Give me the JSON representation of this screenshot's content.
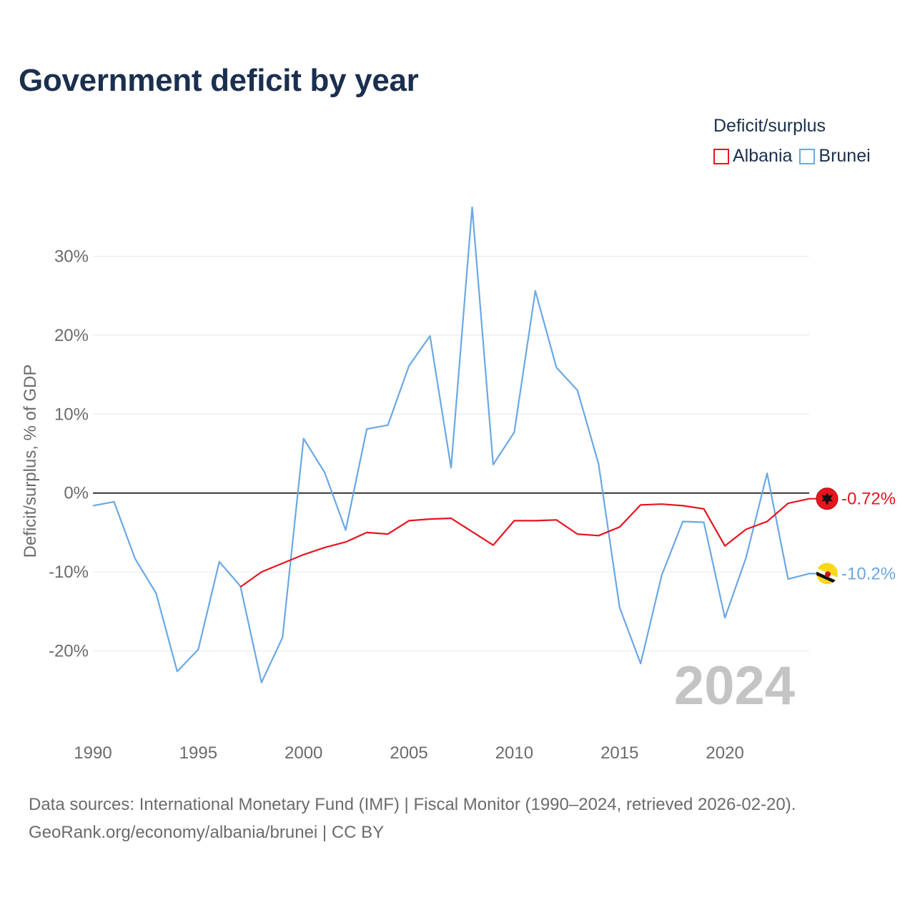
{
  "title": "Government deficit by year",
  "legend": {
    "title": "Deficit/surplus",
    "items": [
      {
        "label": "Albania",
        "color": "#e8141e"
      },
      {
        "label": "Brunei",
        "color": "#6aa8e4"
      }
    ]
  },
  "footer": {
    "line1": "Data sources: International Monetary Fund (IMF) | Fiscal Monitor (1990–2024, retrieved 2026-02-20).",
    "line2": "GeoRank.org/economy/albania/brunei | CC BY"
  },
  "chart_data": {
    "type": "line",
    "title": "Government deficit by year",
    "ylabel": "Deficit/surplus, % of GDP",
    "xlabel": "",
    "xlim": [
      1990,
      2024
    ],
    "ylim": [
      -29,
      38
    ],
    "xticks": [
      1990,
      1995,
      2000,
      2005,
      2010,
      2015,
      2020
    ],
    "yticks": [
      -20,
      -10,
      0,
      10,
      20,
      30
    ],
    "ytick_labels": [
      "-20%",
      "-10%",
      "0%",
      "10%",
      "20%",
      "30%"
    ],
    "year_watermark": "2024",
    "series": [
      {
        "name": "Albania",
        "color": "#e8141e",
        "end_label": "-0.72%",
        "x": [
          1997,
          1998,
          1999,
          2000,
          2001,
          2002,
          2003,
          2004,
          2005,
          2006,
          2007,
          2008,
          2009,
          2010,
          2011,
          2012,
          2013,
          2014,
          2015,
          2016,
          2017,
          2018,
          2019,
          2020,
          2021,
          2022,
          2023,
          2024
        ],
        "values": [
          -11.9,
          -10.0,
          -8.9,
          -7.8,
          -6.9,
          -6.2,
          -5.0,
          -5.2,
          -3.5,
          -3.3,
          -3.2,
          -4.9,
          -6.6,
          -3.5,
          -3.5,
          -3.4,
          -5.2,
          -5.4,
          -4.3,
          -1.5,
          -1.4,
          -1.6,
          -2.0,
          -6.7,
          -4.6,
          -3.6,
          -1.3,
          -0.72
        ]
      },
      {
        "name": "Brunei",
        "color": "#6aa8e4",
        "end_label": "-10.2%",
        "x": [
          1990,
          1991,
          1992,
          1993,
          1994,
          1995,
          1996,
          1997,
          1998,
          1999,
          2000,
          2001,
          2002,
          2003,
          2004,
          2005,
          2006,
          2007,
          2008,
          2009,
          2010,
          2011,
          2012,
          2013,
          2014,
          2015,
          2016,
          2017,
          2018,
          2019,
          2020,
          2021,
          2022,
          2023,
          2024
        ],
        "values": [
          -1.6,
          -1.1,
          -8.3,
          -12.7,
          -22.6,
          -19.8,
          -8.7,
          -11.8,
          -24.0,
          -18.3,
          6.9,
          2.6,
          -4.7,
          8.1,
          8.6,
          16.1,
          19.9,
          3.2,
          36.2,
          3.6,
          7.7,
          25.6,
          15.9,
          13.0,
          3.7,
          -14.5,
          -21.6,
          -10.4,
          -3.6,
          -3.7,
          -15.8,
          -8.2,
          2.5,
          -10.9,
          -10.2
        ]
      }
    ]
  }
}
